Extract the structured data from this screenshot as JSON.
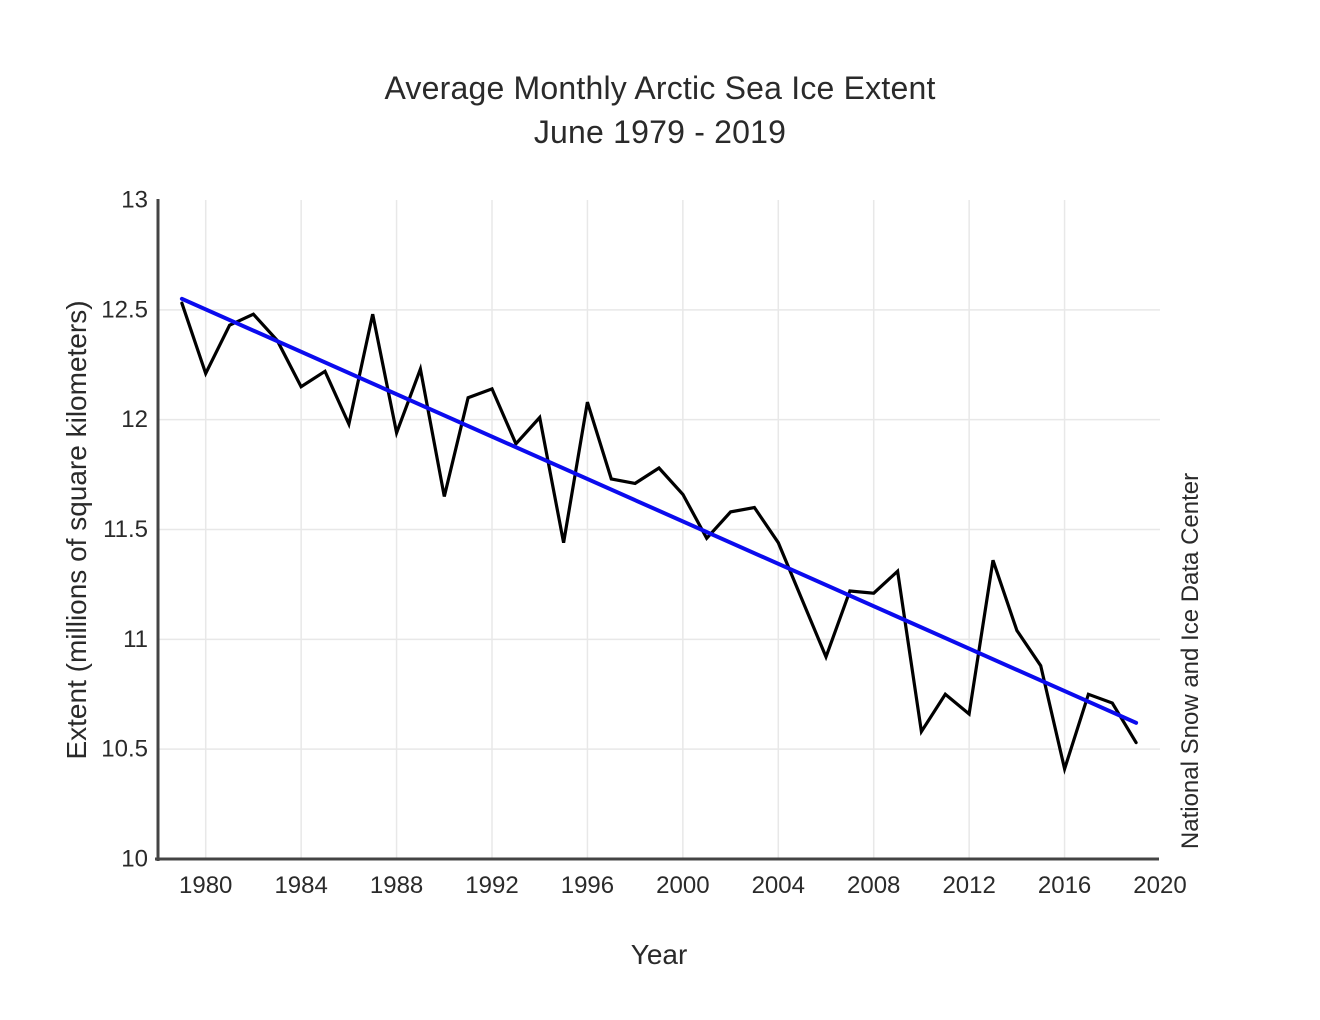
{
  "chart_data": {
    "type": "line",
    "title": "Average Monthly Arctic Sea Ice Extent",
    "subtitle": "June 1979 - 2019",
    "xlabel": "Year",
    "ylabel": "Extent (millions of square kilometers)",
    "annotation": "National Snow and Ice Data Center",
    "xlim": [
      1978,
      2020
    ],
    "ylim": [
      10,
      13
    ],
    "x_ticks": [
      1980,
      1984,
      1988,
      1992,
      1996,
      2000,
      2004,
      2008,
      2012,
      2016,
      2020
    ],
    "x_gridlines": [
      1980,
      1984,
      1988,
      1992,
      1996,
      2000,
      2004,
      2008,
      2012,
      2016
    ],
    "y_ticks": [
      10,
      10.5,
      11,
      11.5,
      12,
      12.5,
      13
    ],
    "y_gridlines": [
      10.5,
      11,
      11.5,
      12,
      12.5
    ],
    "grid": true,
    "legend_position": "none",
    "x": [
      1979,
      1980,
      1981,
      1982,
      1983,
      1984,
      1985,
      1986,
      1987,
      1988,
      1989,
      1990,
      1991,
      1992,
      1993,
      1994,
      1995,
      1996,
      1997,
      1998,
      1999,
      2000,
      2001,
      2002,
      2003,
      2004,
      2005,
      2006,
      2007,
      2008,
      2009,
      2010,
      2011,
      2012,
      2013,
      2014,
      2015,
      2016,
      2017,
      2018,
      2019
    ],
    "series": [
      {
        "name": "june-sea-ice-extent",
        "color": "#000000",
        "width": 3.2,
        "values": [
          12.53,
          12.21,
          12.43,
          12.48,
          12.36,
          12.15,
          12.22,
          11.98,
          12.48,
          11.94,
          12.23,
          11.65,
          12.1,
          12.14,
          11.89,
          12.01,
          11.44,
          12.08,
          11.73,
          11.71,
          11.78,
          11.66,
          11.46,
          11.58,
          11.6,
          11.44,
          11.18,
          10.92,
          11.22,
          11.21,
          11.31,
          10.58,
          10.75,
          10.66,
          11.36,
          11.04,
          10.88,
          10.41,
          10.75,
          10.71,
          10.53
        ]
      },
      {
        "name": "trend-line",
        "color": "#0b0bee",
        "width": 4,
        "x": [
          1979,
          2019
        ],
        "values": [
          12.55,
          10.62
        ]
      }
    ],
    "colors": {
      "background": "#ffffff",
      "grid": "#e8e8e8",
      "axis": "#444444",
      "tick_text": "#2a2a2a",
      "title_text": "#2a2a2a"
    }
  }
}
